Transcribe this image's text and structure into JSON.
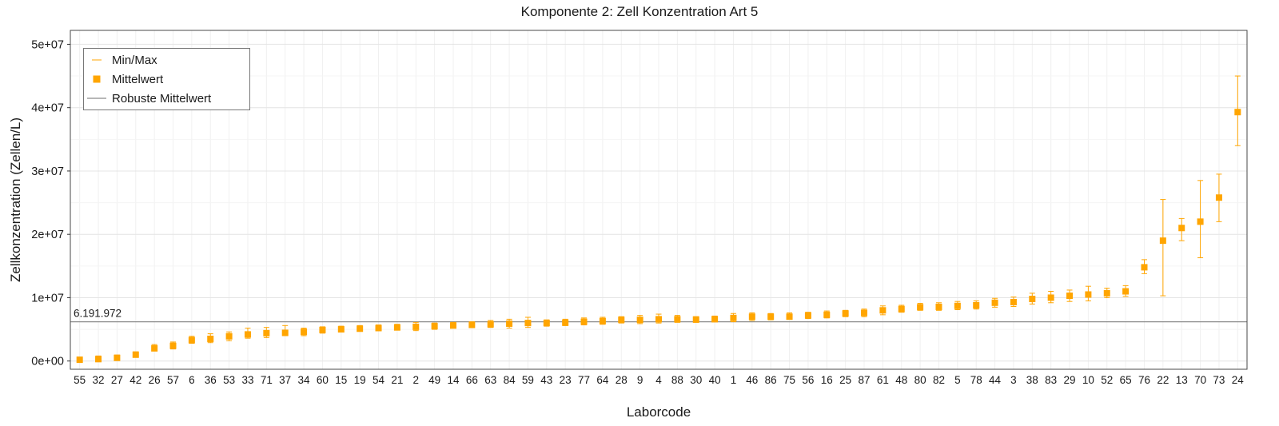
{
  "chart_data": {
    "type": "scatter",
    "title": "Komponente 2: Zell Konzentration Art 5",
    "xlabel": "Laborcode",
    "ylabel": "Zellkonzentration (Zellen/L)",
    "ylim": [
      0,
      50000000
    ],
    "grid": "on",
    "legend_position": "top-left",
    "legend": [
      {
        "label": "Min/Max",
        "symbol": "errorbar",
        "color": "#FFA500"
      },
      {
        "label": "Mittelwert",
        "symbol": "square",
        "color": "#FFA500"
      },
      {
        "label": "Robuste Mittelwert",
        "symbol": "line",
        "color": "#8c8c8c"
      }
    ],
    "robust_mean": {
      "value": 6191972,
      "label": "6.191.972",
      "color": "#8c8c8c"
    },
    "point_color": "#FFA500",
    "ytick_values": [
      0,
      10000000,
      20000000,
      30000000,
      40000000,
      50000000
    ],
    "ytick_labels": [
      "0e+00",
      "1e+07",
      "2e+07",
      "3e+07",
      "4e+07",
      "5e+07"
    ],
    "labs": [
      {
        "code": "55",
        "mean": 200000,
        "min": 50000,
        "max": 550000
      },
      {
        "code": "32",
        "mean": 300000,
        "min": 100000,
        "max": 800000
      },
      {
        "code": "27",
        "mean": 500000,
        "min": 250000,
        "max": 950000
      },
      {
        "code": "42",
        "mean": 1000000,
        "min": 700000,
        "max": 1450000
      },
      {
        "code": "26",
        "mean": 2000000,
        "min": 1600000,
        "max": 2600000
      },
      {
        "code": "57",
        "mean": 2400000,
        "min": 1900000,
        "max": 3000000
      },
      {
        "code": "6",
        "mean": 3300000,
        "min": 2800000,
        "max": 3900000
      },
      {
        "code": "36",
        "mean": 3500000,
        "min": 2900000,
        "max": 4300000
      },
      {
        "code": "53",
        "mean": 3900000,
        "min": 3200000,
        "max": 4600000
      },
      {
        "code": "33",
        "mean": 4200000,
        "min": 3600000,
        "max": 5200000
      },
      {
        "code": "71",
        "mean": 4400000,
        "min": 3700000,
        "max": 5300000
      },
      {
        "code": "37",
        "mean": 4450000,
        "min": 4000000,
        "max": 5600000
      },
      {
        "code": "34",
        "mean": 4600000,
        "min": 4000000,
        "max": 5200000
      },
      {
        "code": "60",
        "mean": 4900000,
        "min": 4400000,
        "max": 5400000
      },
      {
        "code": "15",
        "mean": 5000000,
        "min": 4600000,
        "max": 5500000
      },
      {
        "code": "19",
        "mean": 5100000,
        "min": 4700000,
        "max": 5600000
      },
      {
        "code": "54",
        "mean": 5200000,
        "min": 4800000,
        "max": 5700000
      },
      {
        "code": "21",
        "mean": 5300000,
        "min": 4900000,
        "max": 5800000
      },
      {
        "code": "2",
        "mean": 5400000,
        "min": 4800000,
        "max": 6100000
      },
      {
        "code": "49",
        "mean": 5500000,
        "min": 5000000,
        "max": 6000000
      },
      {
        "code": "14",
        "mean": 5600000,
        "min": 5200000,
        "max": 6100000
      },
      {
        "code": "66",
        "mean": 5700000,
        "min": 5300000,
        "max": 6200000
      },
      {
        "code": "63",
        "mean": 5800000,
        "min": 5300000,
        "max": 6400000
      },
      {
        "code": "84",
        "mean": 5900000,
        "min": 5200000,
        "max": 6600000
      },
      {
        "code": "59",
        "mean": 6000000,
        "min": 5300000,
        "max": 6900000
      },
      {
        "code": "43",
        "mean": 6000000,
        "min": 5500000,
        "max": 6500000
      },
      {
        "code": "23",
        "mean": 6050000,
        "min": 5600000,
        "max": 6600000
      },
      {
        "code": "77",
        "mean": 6200000,
        "min": 5700000,
        "max": 6800000
      },
      {
        "code": "64",
        "mean": 6300000,
        "min": 5800000,
        "max": 6900000
      },
      {
        "code": "28",
        "mean": 6500000,
        "min": 6000000,
        "max": 7000000
      },
      {
        "code": "9",
        "mean": 6500000,
        "min": 5900000,
        "max": 7200000
      },
      {
        "code": "4",
        "mean": 6600000,
        "min": 6000000,
        "max": 7400000
      },
      {
        "code": "88",
        "mean": 6600000,
        "min": 6100000,
        "max": 7200000
      },
      {
        "code": "30",
        "mean": 6550000,
        "min": 6100000,
        "max": 7000000
      },
      {
        "code": "40",
        "mean": 6600000,
        "min": 6200000,
        "max": 7100000
      },
      {
        "code": "1",
        "mean": 6800000,
        "min": 6200000,
        "max": 7500000
      },
      {
        "code": "46",
        "mean": 7000000,
        "min": 6400000,
        "max": 7600000
      },
      {
        "code": "86",
        "mean": 7000000,
        "min": 6500000,
        "max": 7500000
      },
      {
        "code": "75",
        "mean": 7000000,
        "min": 6600000,
        "max": 7600000
      },
      {
        "code": "56",
        "mean": 7200000,
        "min": 6700000,
        "max": 7700000
      },
      {
        "code": "16",
        "mean": 7300000,
        "min": 6800000,
        "max": 7900000
      },
      {
        "code": "25",
        "mean": 7500000,
        "min": 7000000,
        "max": 8000000
      },
      {
        "code": "87",
        "mean": 7600000,
        "min": 7000000,
        "max": 8200000
      },
      {
        "code": "61",
        "mean": 8000000,
        "min": 7300000,
        "max": 8700000
      },
      {
        "code": "48",
        "mean": 8200000,
        "min": 7700000,
        "max": 8800000
      },
      {
        "code": "80",
        "mean": 8500000,
        "min": 8000000,
        "max": 9100000
      },
      {
        "code": "82",
        "mean": 8550000,
        "min": 8000000,
        "max": 9200000
      },
      {
        "code": "5",
        "mean": 8700000,
        "min": 8100000,
        "max": 9400000
      },
      {
        "code": "78",
        "mean": 8800000,
        "min": 8200000,
        "max": 9500000
      },
      {
        "code": "44",
        "mean": 9200000,
        "min": 8500000,
        "max": 9900000
      },
      {
        "code": "3",
        "mean": 9300000,
        "min": 8600000,
        "max": 10100000
      },
      {
        "code": "38",
        "mean": 9800000,
        "min": 9000000,
        "max": 10700000
      },
      {
        "code": "83",
        "mean": 10000000,
        "min": 9200000,
        "max": 11000000
      },
      {
        "code": "29",
        "mean": 10300000,
        "min": 9400000,
        "max": 11200000
      },
      {
        "code": "10",
        "mean": 10500000,
        "min": 9500000,
        "max": 11800000
      },
      {
        "code": "52",
        "mean": 10700000,
        "min": 10000000,
        "max": 11500000
      },
      {
        "code": "65",
        "mean": 11000000,
        "min": 10200000,
        "max": 11900000
      },
      {
        "code": "76",
        "mean": 14800000,
        "min": 13800000,
        "max": 16000000
      },
      {
        "code": "22",
        "mean": 19000000,
        "min": 10300000,
        "max": 25500000
      },
      {
        "code": "13",
        "mean": 21000000,
        "min": 19000000,
        "max": 22500000
      },
      {
        "code": "70",
        "mean": 22000000,
        "min": 16300000,
        "max": 28500000
      },
      {
        "code": "73",
        "mean": 25800000,
        "min": 22000000,
        "max": 29500000
      },
      {
        "code": "24",
        "mean": 39300000,
        "min": 34000000,
        "max": 45000000
      }
    ]
  }
}
